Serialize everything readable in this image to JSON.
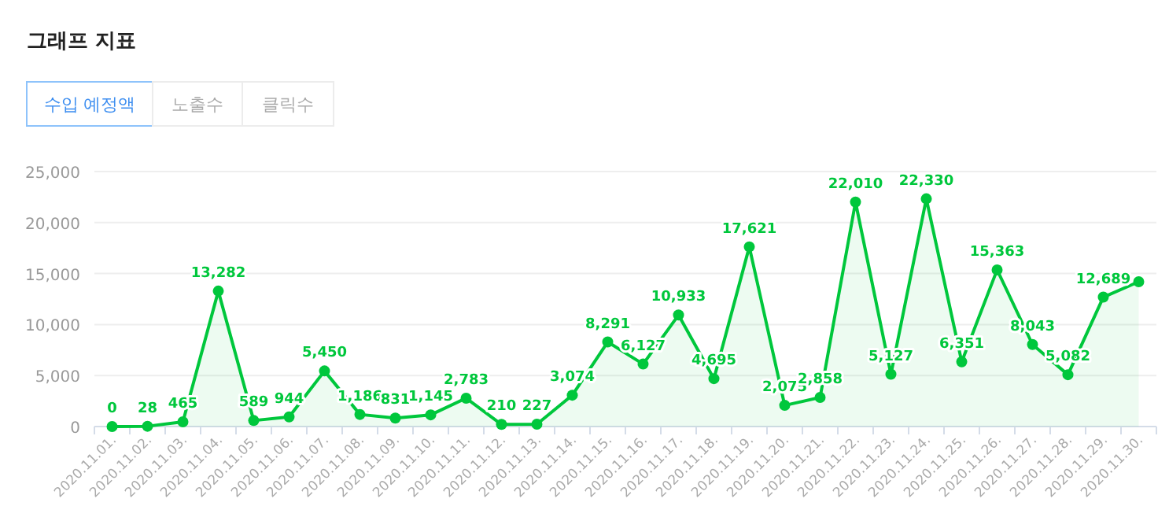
{
  "chart_data": {
    "type": "area",
    "title": "그래프 지표",
    "annotations": [
      "수입 예정액",
      "노출수",
      "클릭수"
    ],
    "categories": [
      "2020.11.01.",
      "2020.11.02.",
      "2020.11.03.",
      "2020.11.04.",
      "2020.11.05.",
      "2020.11.06.",
      "2020.11.07.",
      "2020.11.08.",
      "2020.11.09.",
      "2020.11.10.",
      "2020.11.11.",
      "2020.11.12.",
      "2020.11.13.",
      "2020.11.14.",
      "2020.11.15.",
      "2020.11.16.",
      "2020.11.17.",
      "2020.11.18.",
      "2020.11.19.",
      "2020.11.20.",
      "2020.11.21.",
      "2020.11.22.",
      "2020.11.23.",
      "2020.11.24.",
      "2020.11.25.",
      "2020.11.26.",
      "2020.11.27.",
      "2020.11.28.",
      "2020.11.29.",
      "2020.11.30."
    ],
    "series": [
      {
        "color": "#00c73c",
        "values": [
          0,
          28,
          465,
          13282,
          589,
          944,
          5450,
          1186,
          831,
          1145,
          2783,
          210,
          227,
          3074,
          8291,
          6127,
          10933,
          4695,
          17621,
          2075,
          2858,
          22010,
          5127,
          22330,
          6351,
          15363,
          8043,
          5082,
          12689,
          14200
        ],
        "value_labels": [
          "0",
          "28",
          "465",
          "13,282",
          "589",
          "944",
          "5,450",
          "1,186",
          "831",
          "1,145",
          "2,783",
          "210",
          "227",
          "3,074",
          "8,291",
          "6,127",
          "10,933",
          "4,695",
          "17,621",
          "2,075",
          "2,858",
          "22,010",
          "5,127",
          "22,330",
          "6,351",
          "15,363",
          "8,043",
          "5,082",
          "12,689",
          null
        ]
      }
    ],
    "ylim": [
      0,
      25000
    ],
    "yticks": [
      {
        "value": 0,
        "label": "0"
      },
      {
        "value": 5000,
        "label": "5,000"
      },
      {
        "value": 10000,
        "label": "10,000"
      },
      {
        "value": 15000,
        "label": "15,000"
      },
      {
        "value": 20000,
        "label": "20,000"
      },
      {
        "value": 25000,
        "label": "25,000"
      }
    ],
    "grid": "y",
    "marker": "circle",
    "line_style": "solid"
  }
}
